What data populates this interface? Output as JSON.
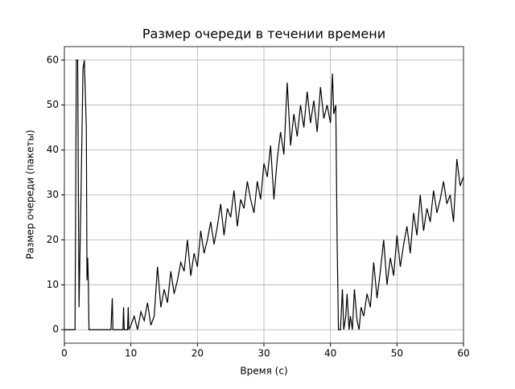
{
  "chart_data": {
    "type": "line",
    "title": "Размер очереди в течении времени",
    "xlabel": "Время (с)",
    "ylabel": "Размер очереди (пакеты)",
    "x": [
      0,
      1.6,
      1.8,
      2,
      2.2,
      2.5,
      2.8,
      3,
      3.3,
      3.4,
      3.5,
      3.6,
      3.7,
      7,
      7.2,
      7.3,
      8.8,
      8.9,
      9,
      9.5,
      9.6,
      9.7,
      10,
      10.5,
      11,
      11.5,
      12,
      12.5,
      13,
      13.5,
      14,
      14.5,
      15,
      15.5,
      16,
      16.5,
      17,
      17.5,
      18,
      18.5,
      19,
      19.5,
      20,
      20.5,
      21,
      21.5,
      22,
      22.5,
      23,
      23.5,
      24,
      24.5,
      25,
      25.5,
      26,
      26.5,
      27,
      27.5,
      28,
      28.5,
      29,
      29.5,
      30,
      30.5,
      31,
      31.5,
      32,
      32.5,
      33,
      33.5,
      34,
      34.5,
      35,
      35.5,
      36,
      36.5,
      37,
      37.5,
      38,
      38.5,
      39,
      39.5,
      40,
      40.3,
      40.5,
      40.8,
      41,
      41.2,
      41.5,
      41.8,
      42,
      42.3,
      42.5,
      42.8,
      43,
      43.3,
      43.6,
      44,
      44.3,
      44.6,
      45,
      45.5,
      46,
      46.5,
      47,
      47.5,
      48,
      48.5,
      49,
      49.5,
      50,
      50.5,
      51,
      51.5,
      52,
      52.5,
      53,
      53.5,
      54,
      54.5,
      55,
      55.5,
      56,
      56.5,
      57,
      57.5,
      58,
      58.5,
      59,
      59.5,
      60
    ],
    "series": [
      {
        "color": "#000000",
        "values": [
          0,
          0,
          60,
          60,
          5,
          30,
          58,
          60,
          45,
          11,
          16,
          11,
          0,
          0,
          7,
          0,
          0,
          5,
          0,
          0,
          5,
          0,
          1,
          3,
          0,
          4,
          2,
          6,
          1,
          3,
          14,
          5,
          9,
          6,
          13,
          8,
          11,
          15,
          13,
          20,
          12,
          17,
          14,
          22,
          17,
          20,
          24,
          19,
          23,
          28,
          21,
          27,
          25,
          31,
          23,
          29,
          27,
          33,
          29,
          26,
          33,
          29,
          37,
          34,
          41,
          29,
          38,
          44,
          39,
          55,
          41,
          48,
          43,
          50,
          45,
          53,
          46,
          51,
          44,
          54,
          47,
          50,
          46,
          57,
          48,
          50,
          20,
          0,
          0,
          9,
          0,
          3,
          8,
          0,
          3,
          0,
          9,
          2,
          0,
          5,
          3,
          8,
          5,
          15,
          7,
          13,
          20,
          10,
          16,
          12,
          21,
          14,
          19,
          23,
          17,
          26,
          21,
          30,
          22,
          27,
          24,
          31,
          26,
          29,
          33,
          28,
          30,
          24,
          38,
          32,
          34
        ]
      }
    ],
    "xlim": [
      0,
      60
    ],
    "ylim": [
      -3,
      63
    ],
    "xticks": [
      0,
      10,
      20,
      30,
      40,
      50,
      60
    ],
    "yticks": [
      0,
      10,
      20,
      30,
      40,
      50,
      60
    ],
    "grid": true
  }
}
